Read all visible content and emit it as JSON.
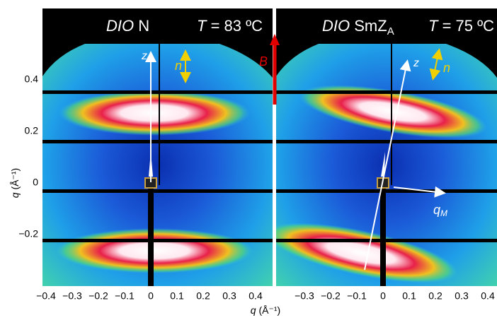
{
  "panels": [
    {
      "title": {
        "sample": "DIO",
        "phase": "N",
        "temperature_symbol": "T",
        "temperature": "= 83 ºC"
      },
      "x_ticks": [
        "−0.4",
        "−0.3",
        "−0.2",
        "−0.1",
        "0",
        "0.1",
        "0.2",
        "0.3",
        "0.4"
      ],
      "annotations": {
        "z": "z",
        "n": "n"
      }
    },
    {
      "title": {
        "sample": "DIO",
        "phase": "SmZ",
        "phase_subscript": "A",
        "temperature_symbol": "T",
        "temperature": "= 75 ºC"
      },
      "x_ticks": [
        "−0.3",
        "−0.2",
        "−0.1",
        "0",
        "0.1",
        "0.2",
        "0.3",
        "0.4"
      ],
      "annotations": {
        "z": "z",
        "n": "n",
        "q": "q",
        "q_subscript": "M"
      }
    }
  ],
  "field_label": "B",
  "y_axis": {
    "symbol": "q",
    "unit": "(Å⁻¹)",
    "ticks": [
      "0.4",
      "0.2",
      "0",
      "−0.2"
    ]
  },
  "x_axis": {
    "symbol": "q",
    "unit": "(Å⁻¹)"
  }
}
